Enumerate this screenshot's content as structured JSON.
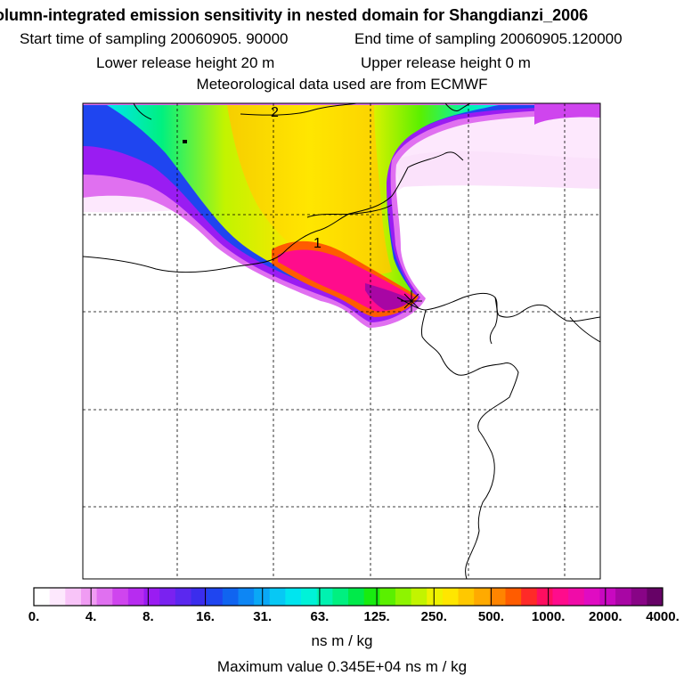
{
  "header": {
    "title": "olumn-integrated emission sensitivity in nested domain for Shangdianzi_2006",
    "start_label": "Start time of sampling 20060905. 90000",
    "end_label": "End time of sampling 20060905.120000",
    "lower_label": "Lower release height   20 m",
    "upper_label": "Upper release height    0 m",
    "met_label": "Meteorological data used are from ECMWF"
  },
  "map": {
    "contour_labels": [
      "2",
      "1"
    ],
    "release_marker": "Shangdianzi receptor"
  },
  "colorbar": {
    "ticks": [
      "0.",
      "4.",
      "8.",
      "16.",
      "31.",
      "63.",
      "125.",
      "250.",
      "500.",
      "1000.",
      "2000.",
      "4000."
    ],
    "colors": [
      "#ffffff",
      "#fde8fd",
      "#f8c4f8",
      "#f09cf3",
      "#e070f0",
      "#cf45ee",
      "#b72cf0",
      "#9a1cf2",
      "#7a22f0",
      "#5b28ef",
      "#3b2ded",
      "#1f45f0",
      "#1064f0",
      "#0d86f4",
      "#0aa8f6",
      "#07c8f4",
      "#00e5ef",
      "#00f2d8",
      "#00f2b0",
      "#00f080",
      "#00ea4a",
      "#18ec10",
      "#5af000",
      "#8ef400",
      "#c2f400",
      "#eef200",
      "#ffe600",
      "#ffc800",
      "#ffaa00",
      "#ff8400",
      "#ff5c00",
      "#ff2a28",
      "#ff0e60",
      "#ff0c8c",
      "#f00ca8",
      "#e00cc2",
      "#c808c0",
      "#a806a4",
      "#880486",
      "#660266"
    ],
    "units": "ns m / kg"
  },
  "footer": {
    "max_value": "Maximum value  0.345E+04 ns m / kg"
  }
}
